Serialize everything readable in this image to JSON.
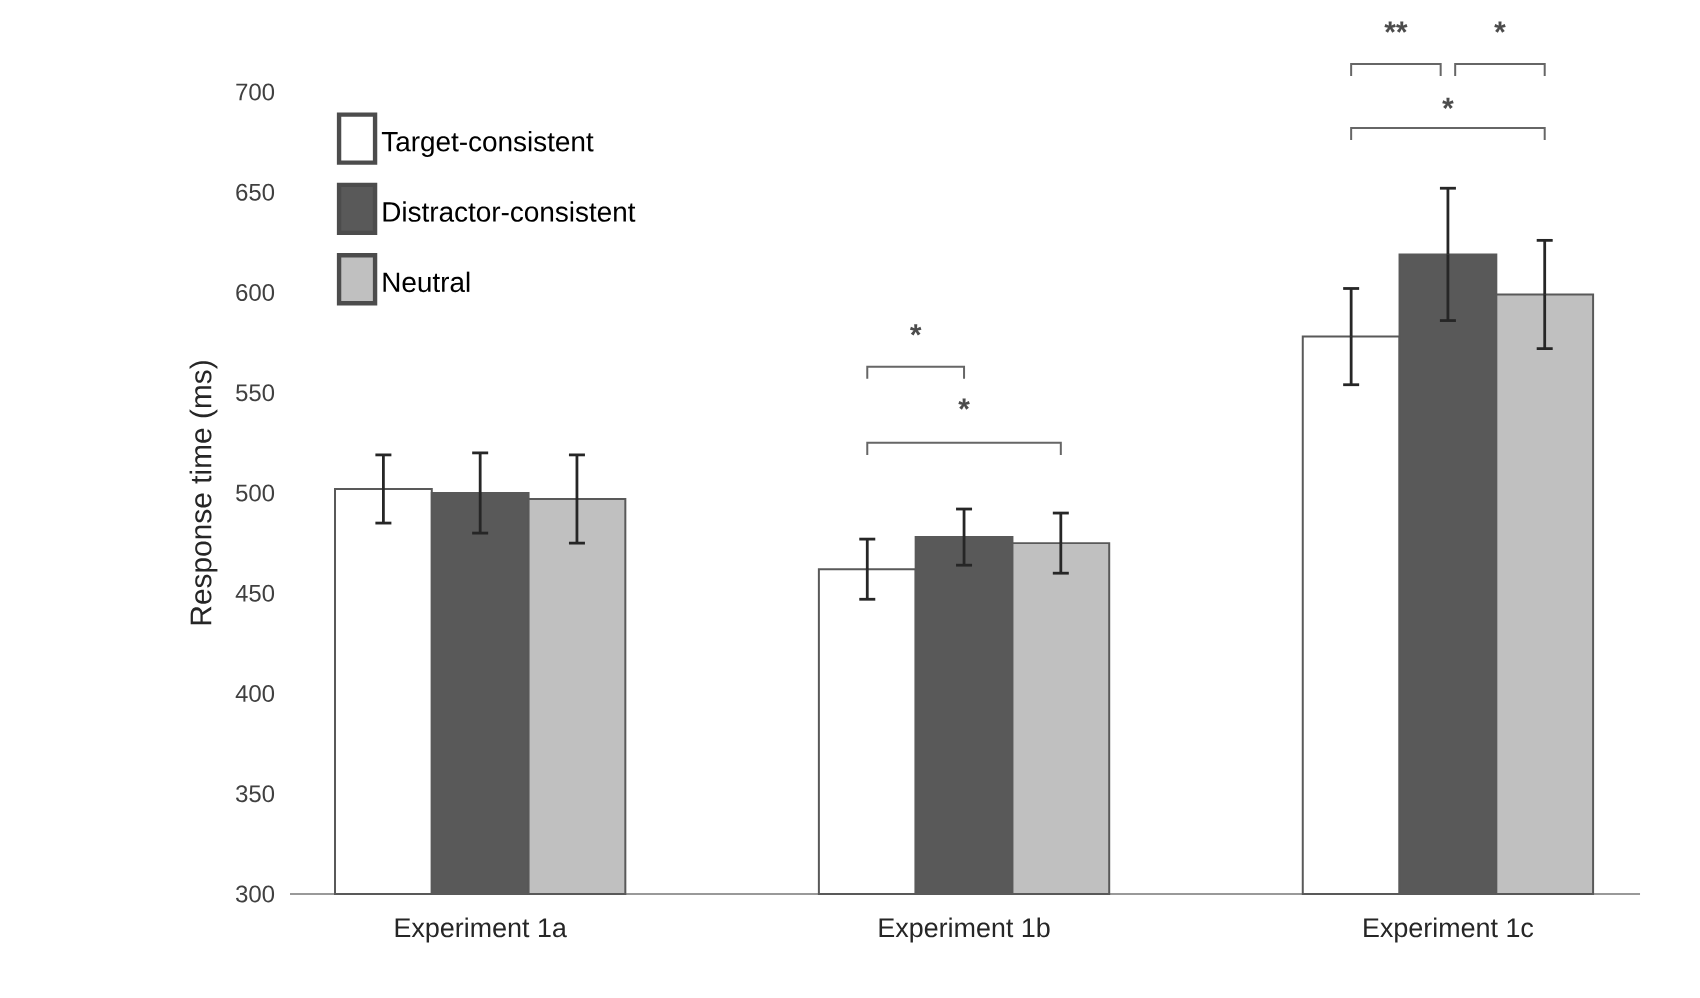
{
  "chart_data": {
    "type": "bar",
    "ylabel": "Response time (ms)",
    "categories": [
      "Experiment 1a",
      "Experiment 1b",
      "Experiment 1c"
    ],
    "series": [
      {
        "name": "Target-consistent",
        "color": "#ffffff",
        "values": [
          502,
          462,
          578
        ],
        "errors": [
          17,
          15,
          24
        ]
      },
      {
        "name": "Distractor-consistent",
        "color": "#595959",
        "values": [
          500,
          478,
          619
        ],
        "errors": [
          20,
          14,
          33
        ]
      },
      {
        "name": "Neutral",
        "color": "#c0c0c0",
        "values": [
          497,
          475,
          599
        ],
        "errors": [
          22,
          15,
          27
        ]
      }
    ],
    "ylim": [
      300,
      700
    ],
    "yticks": [
      300,
      350,
      400,
      450,
      500,
      550,
      600,
      650,
      700
    ],
    "legend": "top left",
    "grid": false,
    "annotations": [
      "*",
      "*",
      "**",
      "*",
      "*"
    ]
  }
}
